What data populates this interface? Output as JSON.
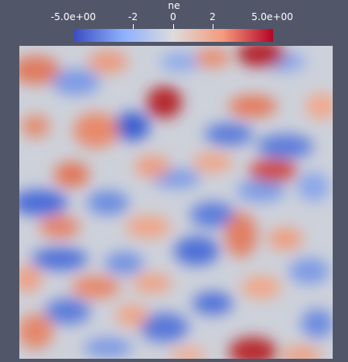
{
  "colorbar": {
    "title": "ne",
    "range": [
      -5.0,
      5.0
    ],
    "ticks": [
      {
        "label": "-5.0e+00",
        "value": -5.0
      },
      {
        "label": "-2",
        "value": -2.0
      },
      {
        "label": "0",
        "value": 0.0
      },
      {
        "label": "2",
        "value": 2.0
      },
      {
        "label": "5.0e+00",
        "value": 5.0
      }
    ],
    "colormap": "cool-to-warm",
    "colors": {
      "low": "#3a4cc0",
      "mid_low": "#8db0fe",
      "mid": "#dddcdc",
      "mid_high": "#f49a7b",
      "high": "#b40426"
    }
  },
  "background_color": "#525669"
}
